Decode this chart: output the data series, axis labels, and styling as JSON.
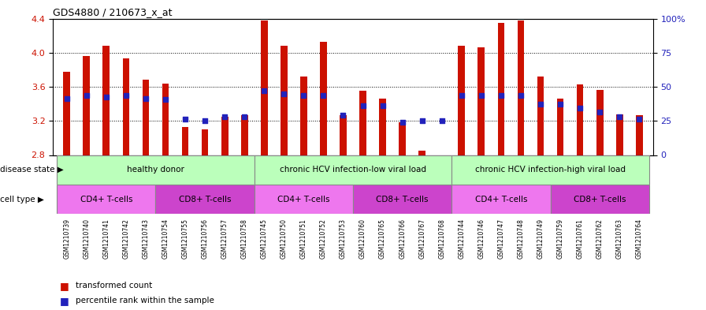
{
  "title": "GDS4880 / 210673_x_at",
  "samples": [
    "GSM1210739",
    "GSM1210740",
    "GSM1210741",
    "GSM1210742",
    "GSM1210743",
    "GSM1210754",
    "GSM1210755",
    "GSM1210756",
    "GSM1210757",
    "GSM1210758",
    "GSM1210745",
    "GSM1210750",
    "GSM1210751",
    "GSM1210752",
    "GSM1210753",
    "GSM1210760",
    "GSM1210765",
    "GSM1210766",
    "GSM1210767",
    "GSM1210768",
    "GSM1210744",
    "GSM1210746",
    "GSM1210747",
    "GSM1210748",
    "GSM1210749",
    "GSM1210759",
    "GSM1210761",
    "GSM1210762",
    "GSM1210763",
    "GSM1210764"
  ],
  "bar_values": [
    3.78,
    3.96,
    4.08,
    3.93,
    3.68,
    3.64,
    3.13,
    3.1,
    3.25,
    3.27,
    4.38,
    4.08,
    3.72,
    4.13,
    3.27,
    3.55,
    3.46,
    3.18,
    2.85,
    2.8,
    4.08,
    4.06,
    4.35,
    4.38,
    3.72,
    3.46,
    3.63,
    3.56,
    3.28,
    3.27
  ],
  "dot_values": [
    3.46,
    3.5,
    3.48,
    3.5,
    3.46,
    3.45,
    3.22,
    3.2,
    3.25,
    3.25,
    3.55,
    3.52,
    3.5,
    3.5,
    3.27,
    3.38,
    3.38,
    3.18,
    3.2,
    3.2,
    3.5,
    3.5,
    3.5,
    3.5,
    3.4,
    3.4,
    3.35,
    3.3,
    3.25,
    3.22
  ],
  "ymin": 2.8,
  "ymax": 4.4,
  "yticks_left": [
    2.8,
    3.2,
    3.6,
    4.0,
    4.4
  ],
  "yticks_right_vals": [
    2.8,
    3.2,
    3.6,
    4.0,
    4.4
  ],
  "yticks_right_labels": [
    "0",
    "25",
    "50",
    "75",
    "100%"
  ],
  "grid_lines": [
    3.2,
    3.6,
    4.0
  ],
  "bar_color": "#cc1100",
  "dot_color": "#2222bb",
  "bar_width": 0.35,
  "disease_regions": [
    {
      "label": "healthy donor",
      "start": 0,
      "end": 9
    },
    {
      "label": "chronic HCV infection-low viral load",
      "start": 10,
      "end": 19
    },
    {
      "label": "chronic HCV infection-high viral load",
      "start": 20,
      "end": 29
    }
  ],
  "cell_regions": [
    {
      "label": "CD4+ T-cells",
      "start": 0,
      "end": 4
    },
    {
      "label": "CD8+ T-cells",
      "start": 5,
      "end": 9
    },
    {
      "label": "CD4+ T-cells",
      "start": 10,
      "end": 14
    },
    {
      "label": "CD8+ T-cells",
      "start": 15,
      "end": 19
    },
    {
      "label": "CD4+ T-cells",
      "start": 20,
      "end": 24
    },
    {
      "label": "CD8+ T-cells",
      "start": 25,
      "end": 29
    }
  ],
  "disease_bg_color": "#bbffbb",
  "cd4_color": "#ee77ee",
  "cd8_color": "#cc44cc",
  "xticklabel_bg": "#dddddd",
  "label_fontsize": 7.5,
  "tick_fontsize": 6,
  "legend_bar_label": "transformed count",
  "legend_dot_label": "percentile rank within the sample"
}
